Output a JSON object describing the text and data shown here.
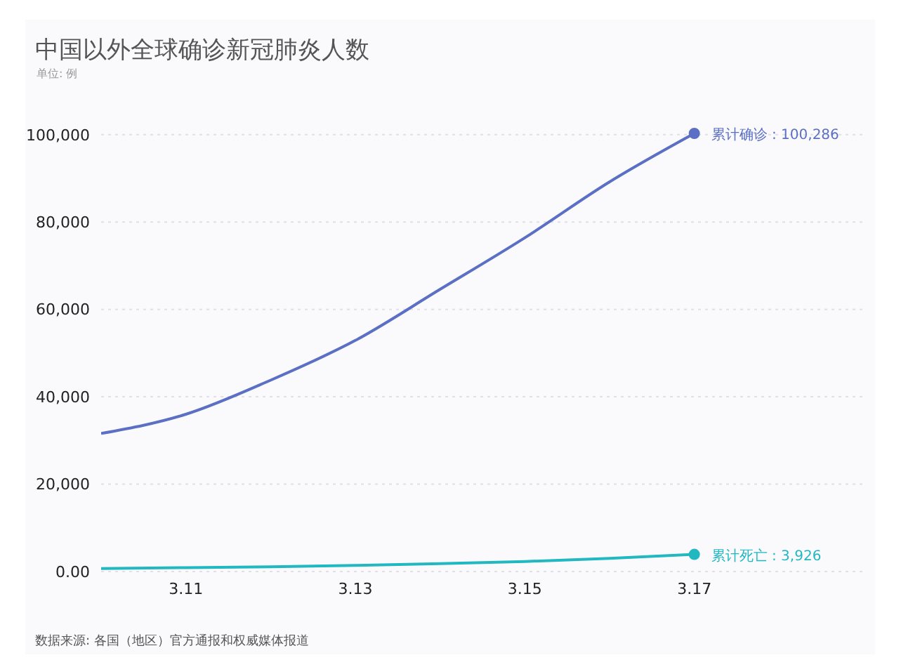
{
  "chart_data": {
    "type": "line",
    "title": "中国以外全球确诊新冠肺炎人数",
    "subtitle": "单位: 例",
    "categories": [
      null,
      "3.11",
      null,
      "3.13",
      null,
      "3.15",
      null,
      "3.17"
    ],
    "ylim": [
      0,
      100286
    ],
    "yticks": [
      {
        "value": 0,
        "label": "0.00"
      },
      {
        "value": 20000,
        "label": "20,000"
      },
      {
        "value": 40000,
        "label": "40,000"
      },
      {
        "value": 60000,
        "label": "60,000"
      },
      {
        "value": 80000,
        "label": "80,000"
      },
      {
        "value": 100000,
        "label": "100,000"
      }
    ],
    "series": [
      {
        "color": "#5b70c4",
        "values": [
          31600,
          36000,
          43800,
          52900,
          64600,
          76400,
          89200,
          100286
        ]
      },
      {
        "color": "#22b8c2",
        "values": [
          700,
          900,
          1100,
          1400,
          1800,
          2300,
          3000,
          3926
        ]
      }
    ],
    "annotations": [
      {
        "text": "累计确诊 : 100,286",
        "x": "3.17",
        "y": 100286
      },
      {
        "text": "累计死亡 : 3,926",
        "x": "3.17",
        "y": 3926
      },
      "数据来源: 各国（地区）官方通报和权威媒体报道"
    ],
    "grid": "y",
    "marker": "none",
    "line_style": "solid"
  }
}
